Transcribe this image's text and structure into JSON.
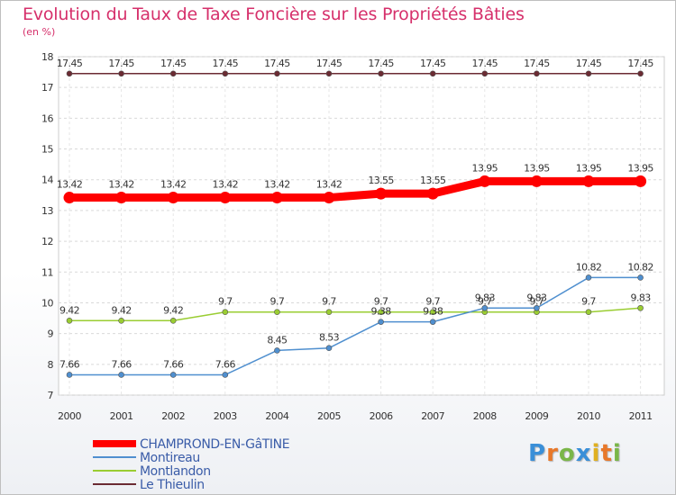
{
  "chart_data": {
    "type": "line",
    "title": "Evolution du Taux de Taxe Foncière sur les Propriétés Bâties",
    "ylabel": "(en %)",
    "xlabel": "",
    "x": [
      2000,
      2001,
      2002,
      2003,
      2004,
      2005,
      2006,
      2007,
      2008,
      2009,
      2010,
      2011
    ],
    "x_tick_labels": [
      "2000",
      "2001",
      "2002",
      "2003",
      "2004",
      "2005",
      "2006",
      "2007",
      "2008",
      "2009",
      "2010",
      "2011"
    ],
    "ylim": [
      7,
      18
    ],
    "y_tick_labels": [
      "7",
      "8",
      "9",
      "10",
      "11",
      "12",
      "13",
      "14",
      "15",
      "16",
      "17",
      "18"
    ],
    "grid": true,
    "legend_position": "bottom-left",
    "series": [
      {
        "name": "Le Thieulin",
        "color": "#6b2b33",
        "values": [
          17.45,
          17.45,
          17.45,
          17.45,
          17.45,
          17.45,
          17.45,
          17.45,
          17.45,
          17.45,
          17.45,
          17.45
        ],
        "labels": [
          "17.45",
          "17.45",
          "17.45",
          "17.45",
          "17.45",
          "17.45",
          "17.45",
          "17.45",
          "17.45",
          "17.45",
          "17.45",
          "17.45"
        ]
      },
      {
        "name": "CHAMPROND-EN-GâTINE",
        "color": "#ff0000",
        "values": [
          13.42,
          13.42,
          13.42,
          13.42,
          13.42,
          13.42,
          13.55,
          13.55,
          13.95,
          13.95,
          13.95,
          13.95
        ],
        "labels": [
          "13.42",
          "13.42",
          "13.42",
          "13.42",
          "13.42",
          "13.42",
          "13.55",
          "13.55",
          "13.95",
          "13.95",
          "13.95",
          "13.95"
        ]
      },
      {
        "name": "Montlandon",
        "color": "#9acd32",
        "values": [
          9.42,
          9.42,
          9.42,
          9.7,
          9.7,
          9.7,
          9.7,
          9.7,
          9.7,
          9.7,
          9.7,
          9.83
        ],
        "labels": [
          "9.42",
          "9.42",
          "9.42",
          "9.7",
          "9.7",
          "9.7",
          "9.7",
          "9.7",
          "9.7",
          "9.7",
          "9.7",
          "9.83"
        ]
      },
      {
        "name": "Montireau",
        "color": "#4f8fcf",
        "values": [
          7.66,
          7.66,
          7.66,
          7.66,
          8.45,
          8.53,
          9.38,
          9.38,
          9.83,
          9.83,
          10.82,
          10.82
        ],
        "labels": [
          "7.66",
          "7.66",
          "7.66",
          "7.66",
          "8.45",
          "8.53",
          "9.38",
          "9.38",
          "9.83",
          "9.83",
          "10.82",
          "10.82"
        ]
      }
    ],
    "legend": [
      {
        "name": "CHAMPROND-EN-GâTINE",
        "color": "#ff0000",
        "thick": true
      },
      {
        "name": "Montireau",
        "color": "#4f8fcf",
        "thick": false
      },
      {
        "name": "Montlandon",
        "color": "#9acd32",
        "thick": false
      },
      {
        "name": "Le Thieulin",
        "color": "#6b2b33",
        "thick": false
      }
    ]
  },
  "logo": {
    "text": "Proxiti",
    "colors": [
      "#3a8fd8",
      "#e8782a",
      "#7ab648",
      "#3a8fd8",
      "#e0b020",
      "#e8782a",
      "#7ab648"
    ]
  }
}
